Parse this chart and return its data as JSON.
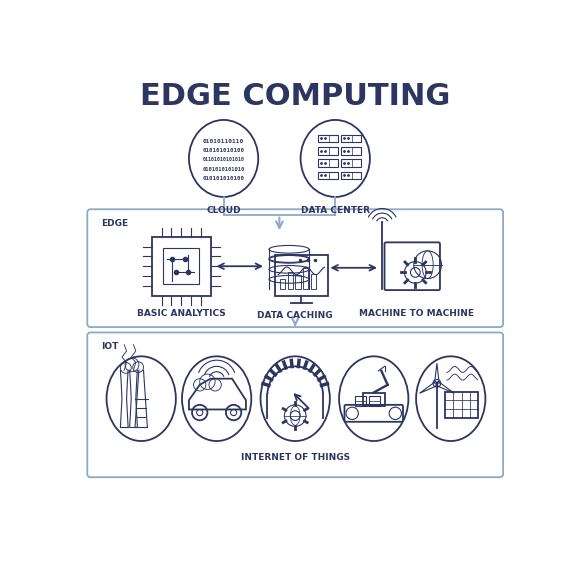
{
  "title": "EDGE COMPUTING",
  "title_fontsize": 22,
  "title_fontweight": "bold",
  "bg_color": "#ffffff",
  "outline_color": "#2d3561",
  "box_edge_color": "#8baac8",
  "box_facecolor": "#ffffff",
  "label_color": "#2d3561",
  "cloud_label": "CLOUD",
  "datacenter_label": "DATA CENTER",
  "edge_label": "EDGE",
  "iot_label": "IOT",
  "basic_analytics_label": "BASIC ANALYTICS",
  "data_caching_label": "DATA CACHING",
  "machine_label": "MACHINE TO MACHINE",
  "iot_bottom_label": "INTERNET OF THINGS",
  "label_fontsize": 6.5,
  "section_label_fontsize": 6.5,
  "arrow_color": "#8baac8"
}
